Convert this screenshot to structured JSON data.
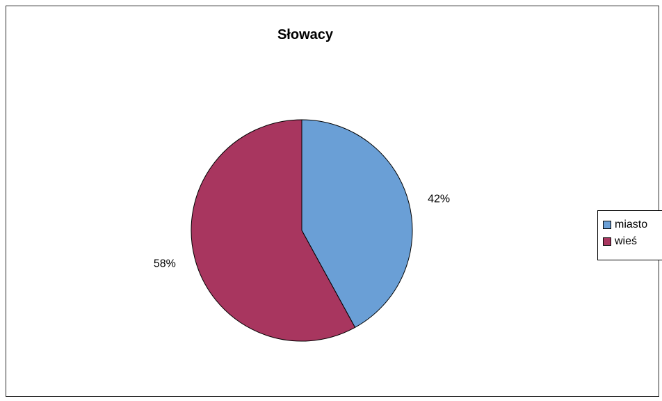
{
  "chart_data": {
    "type": "pie",
    "title": "Słowacy",
    "categories": [
      "miasto",
      "wieś"
    ],
    "values": [
      42,
      58
    ],
    "value_labels": [
      "42%",
      "58%"
    ],
    "colors": [
      "#6a9fd6",
      "#a8365f"
    ],
    "legend_placement": "right"
  }
}
